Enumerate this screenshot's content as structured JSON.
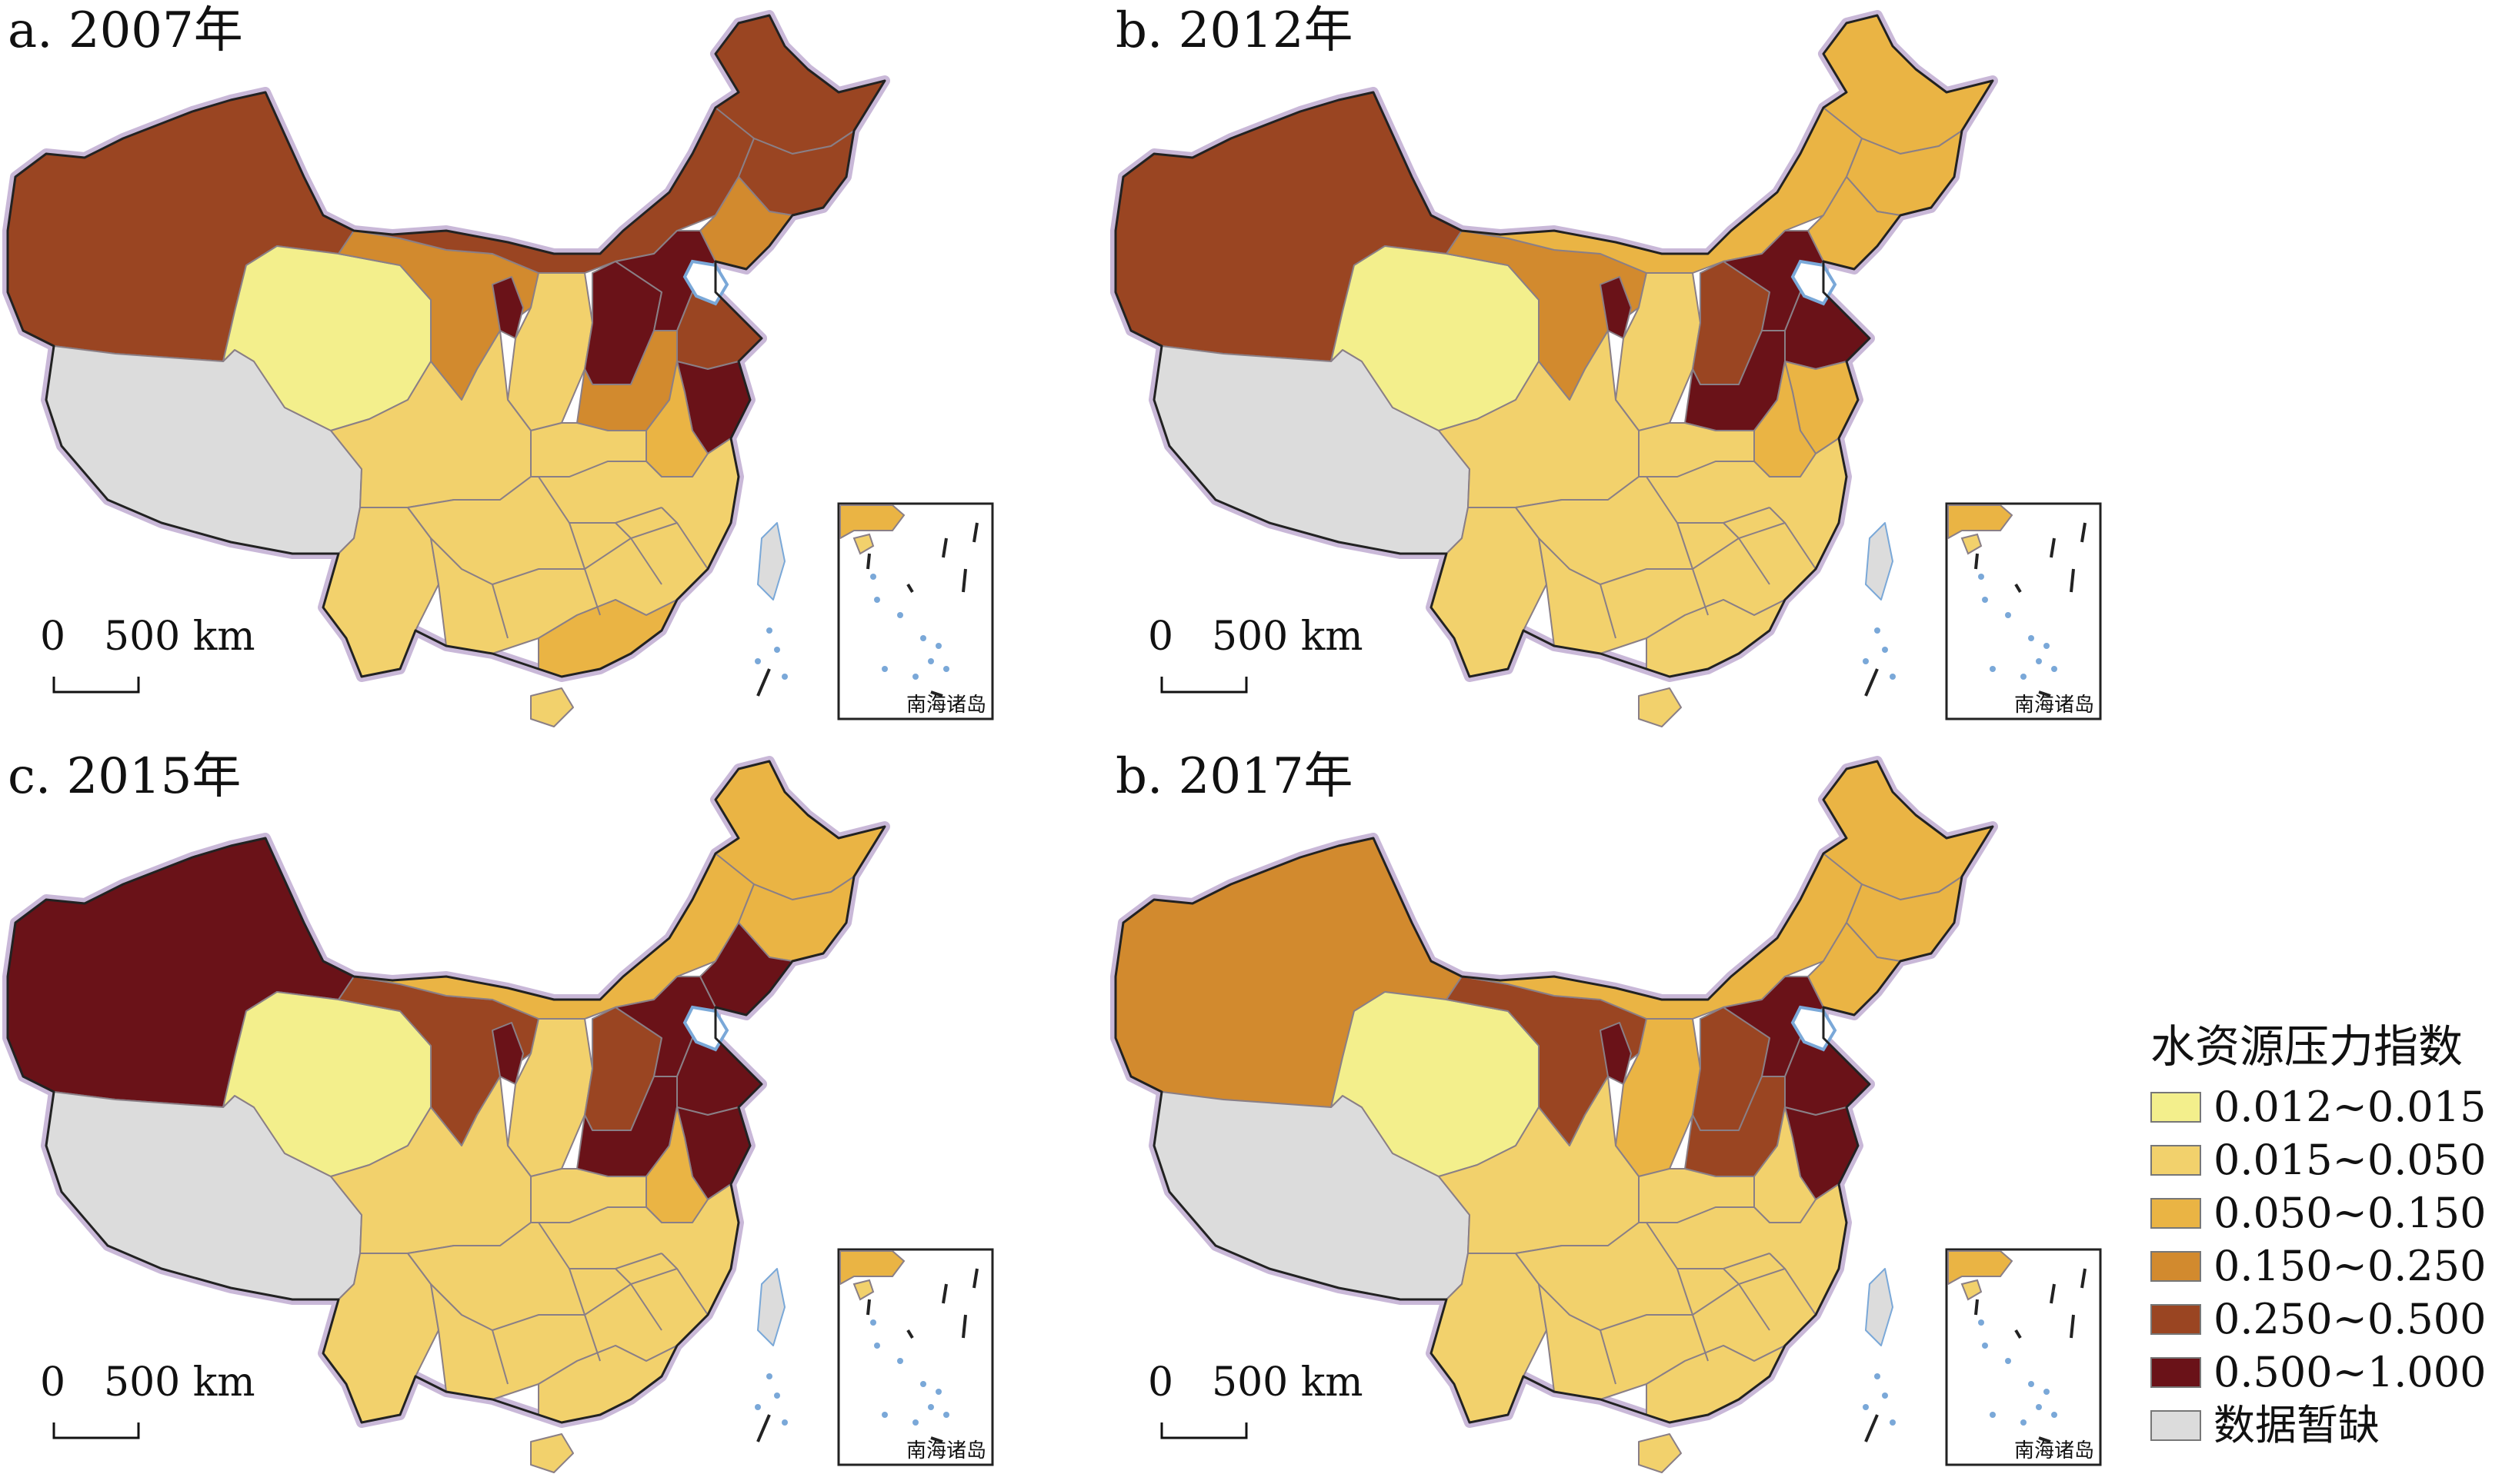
{
  "panels": [
    {
      "label": "a. 2007年",
      "scale_zero": "0",
      "scale_label": "500 km",
      "inset_label": "南海诸岛",
      "regions": {
        "xinjiang": 4,
        "tibet": 6,
        "qinghai": 0,
        "gansu": 3,
        "inner_mongolia": 4,
        "heilongjiang": 4,
        "jilin": 4,
        "liaoning": 3,
        "ningxia": 5,
        "shaanxi": 1,
        "shanxi": 5,
        "hebei": 5,
        "shandong": 4,
        "henan": 3,
        "jiangsu": 5,
        "anhui": 2,
        "sichuan": 1,
        "yunnan": 1,
        "south": 1,
        "guangdong": 2,
        "hainan": 1,
        "taiwan": 6
      }
    },
    {
      "label": "b. 2012年",
      "scale_zero": "0",
      "scale_label": "500 km",
      "inset_label": "南海诸岛",
      "regions": {
        "xinjiang": 4,
        "tibet": 6,
        "qinghai": 0,
        "gansu": 3,
        "inner_mongolia": 2,
        "heilongjiang": 2,
        "jilin": 2,
        "liaoning": 2,
        "ningxia": 5,
        "shaanxi": 1,
        "shanxi": 4,
        "hebei": 5,
        "shandong": 5,
        "henan": 5,
        "jiangsu": 2,
        "anhui": 2,
        "sichuan": 1,
        "yunnan": 1,
        "south": 1,
        "guangdong": 1,
        "hainan": 1,
        "taiwan": 6
      }
    },
    {
      "label": "c. 2015年",
      "scale_zero": "0",
      "scale_label": "500 km",
      "inset_label": "南海诸岛",
      "regions": {
        "xinjiang": 5,
        "tibet": 6,
        "qinghai": 0,
        "gansu": 4,
        "inner_mongolia": 2,
        "heilongjiang": 2,
        "jilin": 2,
        "liaoning": 5,
        "ningxia": 5,
        "shaanxi": 1,
        "shanxi": 4,
        "hebei": 5,
        "shandong": 5,
        "henan": 5,
        "jiangsu": 5,
        "anhui": 2,
        "sichuan": 1,
        "yunnan": 1,
        "south": 1,
        "guangdong": 1,
        "hainan": 1,
        "taiwan": 6
      }
    },
    {
      "label": "b. 2017年",
      "scale_zero": "0",
      "scale_label": "500 km",
      "inset_label": "南海诸岛",
      "regions": {
        "xinjiang": 3,
        "tibet": 6,
        "qinghai": 0,
        "gansu": 4,
        "inner_mongolia": 2,
        "heilongjiang": 2,
        "jilin": 2,
        "liaoning": 2,
        "ningxia": 5,
        "shaanxi": 2,
        "shanxi": 4,
        "hebei": 5,
        "shandong": 5,
        "henan": 4,
        "jiangsu": 5,
        "anhui": 1,
        "sichuan": 1,
        "yunnan": 1,
        "south": 1,
        "guangdong": 1,
        "hainan": 1,
        "taiwan": 6
      }
    }
  ],
  "legend": {
    "title": "水资源压力指数",
    "items": [
      {
        "label": "0.012~0.015",
        "color": "#f3ef8c"
      },
      {
        "label": "0.015~0.050",
        "color": "#f2d16c"
      },
      {
        "label": "0.050~0.150",
        "color": "#eab444"
      },
      {
        "label": "0.150~0.250",
        "color": "#d28a2e"
      },
      {
        "label": "0.250~0.500",
        "color": "#9a4522"
      },
      {
        "label": "0.500~1.000",
        "color": "#6a1218"
      },
      {
        "label": "数据暂缺",
        "color": "#dcdcdc"
      }
    ]
  }
}
